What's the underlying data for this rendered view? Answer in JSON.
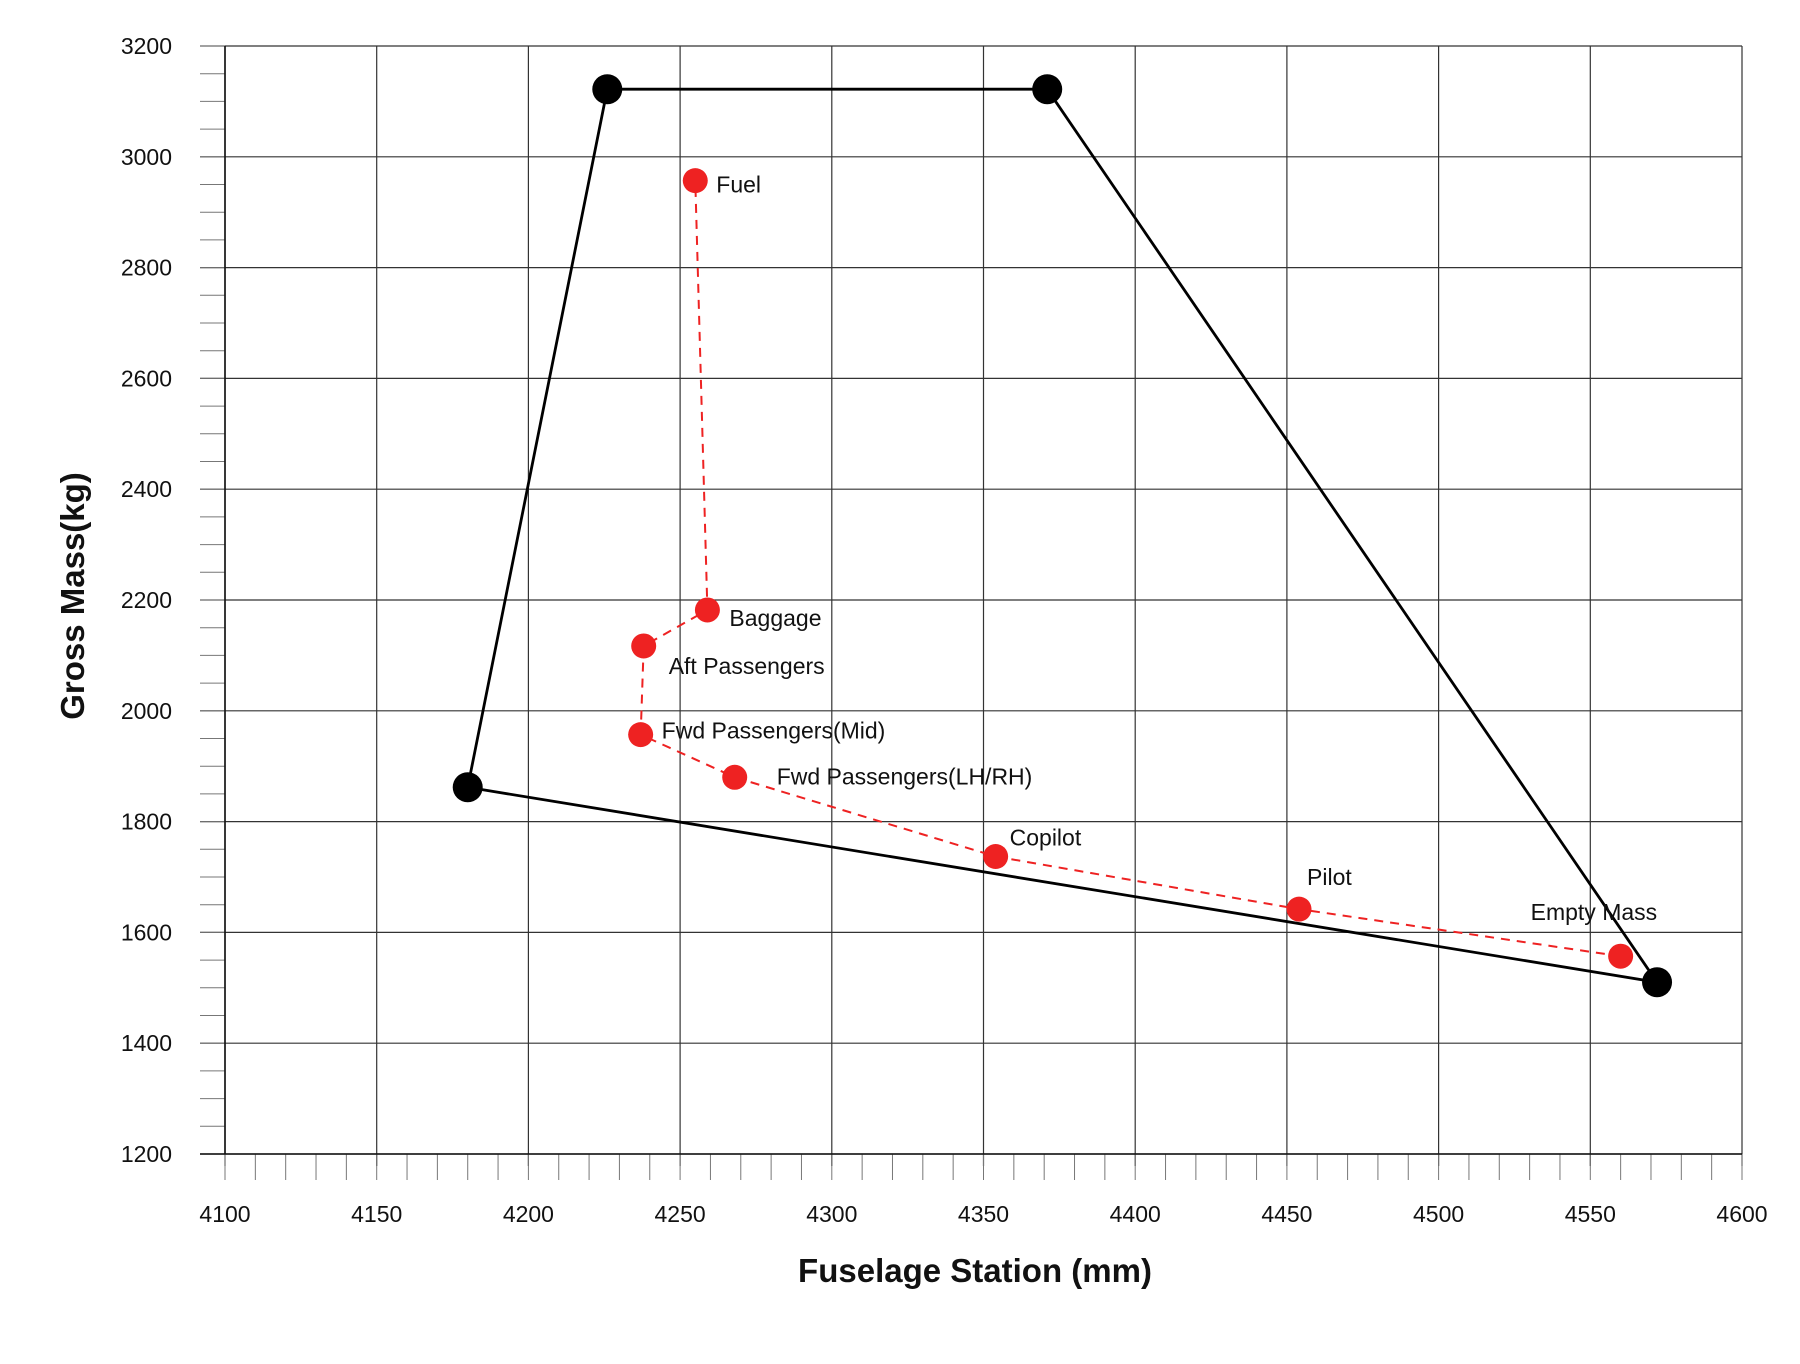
{
  "chart_data": {
    "type": "scatter",
    "title": "",
    "xlabel": "Fuselage Station (mm)",
    "ylabel": "Gross Mass(kg)",
    "xlim": [
      4100,
      4600
    ],
    "ylim": [
      1200,
      3200
    ],
    "x_ticks": [
      4100,
      4150,
      4200,
      4250,
      4300,
      4350,
      4400,
      4450,
      4500,
      4550,
      4600
    ],
    "y_ticks": [
      1200,
      1400,
      1600,
      1800,
      2000,
      2200,
      2400,
      2600,
      2800,
      3000,
      3200
    ],
    "grid": true,
    "envelope": {
      "color": "#000000",
      "points": [
        {
          "x": 4226,
          "y": 3122
        },
        {
          "x": 4371,
          "y": 3122
        },
        {
          "x": 4572,
          "y": 1510
        },
        {
          "x": 4180,
          "y": 1862
        }
      ]
    },
    "loading_path": {
      "color": "#ee2222",
      "points": [
        {
          "label": "Empty Mass",
          "x": 4560,
          "y": 1557
        },
        {
          "label": "Pilot",
          "x": 4454,
          "y": 1642
        },
        {
          "label": "Copilot",
          "x": 4354,
          "y": 1737
        },
        {
          "label": "Fwd Passengers(LH/RH)",
          "x": 4268,
          "y": 1880
        },
        {
          "label": "Fwd Passengers(Mid)",
          "x": 4237,
          "y": 1957
        },
        {
          "label": "Aft Passengers",
          "x": 4238,
          "y": 2117
        },
        {
          "label": "Baggage",
          "x": 4259,
          "y": 2182
        },
        {
          "label": "Fuel",
          "x": 4255,
          "y": 2957
        }
      ]
    }
  }
}
